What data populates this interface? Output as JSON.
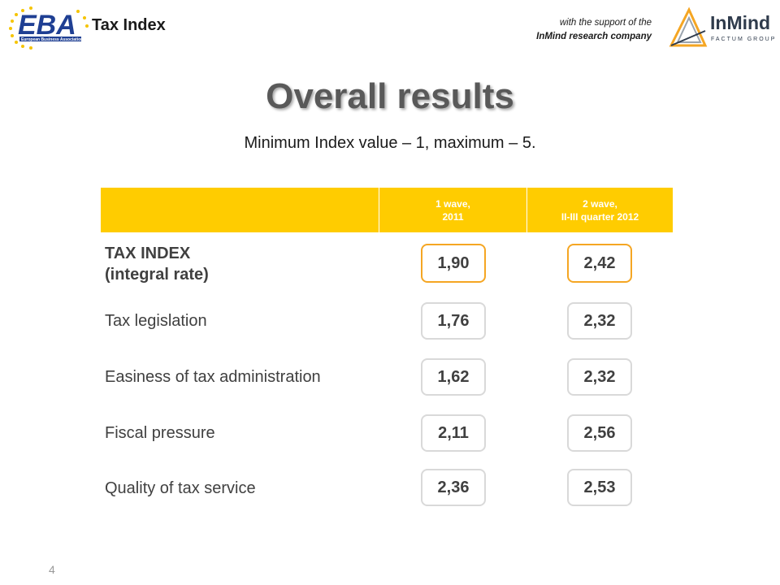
{
  "header": {
    "eba_logo_text": "EBA",
    "eba_logo_subtext": "European Business Association",
    "doc_label": "Tax Index",
    "support_line1": "with the support of the",
    "support_line2": "InMind research company",
    "inmind_logo_text": "InMind",
    "inmind_logo_subtext": "FACTUM GROUP"
  },
  "title": "Overall results",
  "subtitle": "Minimum Index value – 1, maximum – 5.",
  "table": {
    "columns": [
      {
        "line1": "1 wave,",
        "line2": "2011"
      },
      {
        "line1": "2 wave,",
        "line2": "II-III quarter 2012"
      }
    ],
    "rows": [
      {
        "label_line1": "TAX INDEX",
        "label_line2": "(integral rate)",
        "v1": "1,90",
        "v2": "2,42"
      },
      {
        "label": "Tax legislation",
        "v1": "1,76",
        "v2": "2,32"
      },
      {
        "label": "Easiness of tax administration",
        "v1": "1,62",
        "v2": "2,32"
      },
      {
        "label": "Fiscal pressure",
        "v1": "2,11",
        "v2": "2,56"
      },
      {
        "label": "Quality of tax service",
        "v1": "2,36",
        "v2": "2,53"
      }
    ]
  },
  "page_number": "4",
  "colors": {
    "header_bar": "#ffcc00",
    "highlight_border": "#f5a623",
    "box_border": "#d9d9d9",
    "eba_blue": "#1f3f93",
    "eba_star": "#f5c400"
  }
}
